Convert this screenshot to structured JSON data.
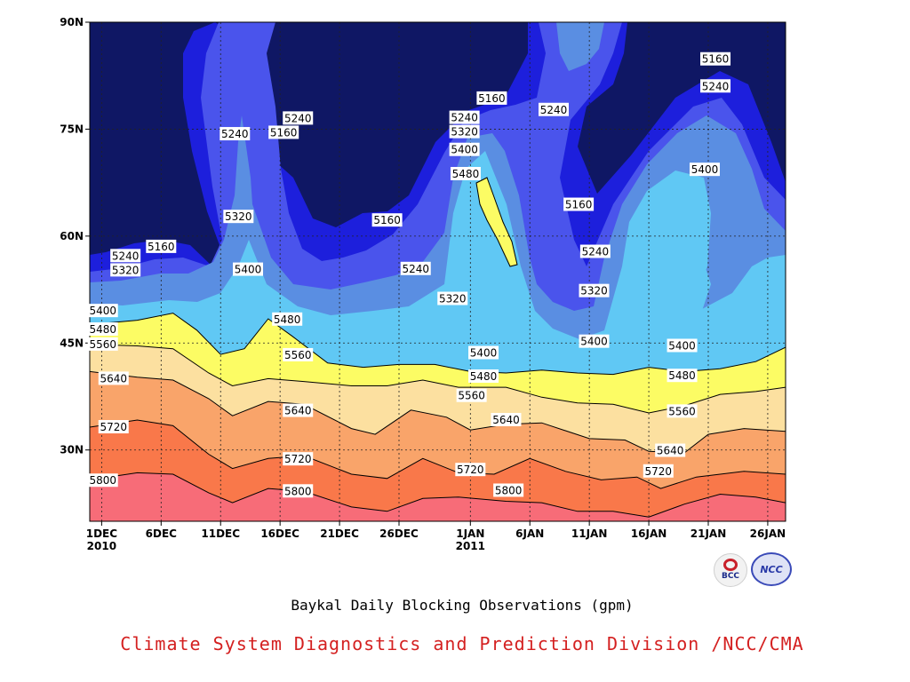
{
  "chart_data": {
    "type": "contour",
    "title": "",
    "subtitle": "Baykal Daily Blocking Observations (gpm)",
    "xlabel": "",
    "ylabel": "",
    "x_ticks": [
      {
        "day": 0,
        "label": "1DEC",
        "sublabel": "2010"
      },
      {
        "day": 5,
        "label": "6DEC",
        "sublabel": ""
      },
      {
        "day": 10,
        "label": "11DEC",
        "sublabel": ""
      },
      {
        "day": 15,
        "label": "16DEC",
        "sublabel": ""
      },
      {
        "day": 20,
        "label": "21DEC",
        "sublabel": ""
      },
      {
        "day": 25,
        "label": "26DEC",
        "sublabel": ""
      },
      {
        "day": 31,
        "label": "1JAN",
        "sublabel": "2011"
      },
      {
        "day": 36,
        "label": "6JAN",
        "sublabel": ""
      },
      {
        "day": 41,
        "label": "11JAN",
        "sublabel": ""
      },
      {
        "day": 46,
        "label": "16JAN",
        "sublabel": ""
      },
      {
        "day": 51,
        "label": "21JAN",
        "sublabel": ""
      },
      {
        "day": 56,
        "label": "26JAN",
        "sublabel": ""
      }
    ],
    "y_ticks": [
      {
        "lat": 30,
        "label": "30N"
      },
      {
        "lat": 45,
        "label": "45N"
      },
      {
        "lat": 60,
        "label": "60N"
      },
      {
        "lat": 75,
        "label": "75N"
      },
      {
        "lat": 90,
        "label": "90N"
      }
    ],
    "xlim_days": [
      -1,
      57.5
    ],
    "ylim": [
      20,
      90
    ],
    "grid": true,
    "levels": [
      5160,
      5240,
      5320,
      5400,
      5480,
      5560,
      5640,
      5720,
      5800
    ],
    "level_colors": {
      "below_5160": "#0f1764",
      "5160": "#1d1fdc",
      "5240": "#4a54ec",
      "5320": "#5a8ee2",
      "5400": "#60c8f4",
      "5480": "#fcfc64",
      "5560": "#fce0a0",
      "5640": "#f9a46a",
      "5720": "#f9784a",
      "5800": "#f76c78"
    },
    "band_boundaries": [
      {
        "level": 5800,
        "points": [
          [
            -1,
            25.8
          ],
          [
            3,
            26.8
          ],
          [
            6,
            26.6
          ],
          [
            9,
            24.0
          ],
          [
            11,
            22.6
          ],
          [
            14,
            24.6
          ],
          [
            17,
            24.2
          ],
          [
            21,
            22.0
          ],
          [
            24,
            21.4
          ],
          [
            27,
            23.2
          ],
          [
            30,
            23.4
          ],
          [
            34,
            22.8
          ],
          [
            37,
            22.6
          ],
          [
            40,
            21.4
          ],
          [
            43,
            21.4
          ],
          [
            46,
            20.6
          ],
          [
            49,
            22.4
          ],
          [
            52,
            23.8
          ],
          [
            55,
            23.4
          ],
          [
            57.5,
            22.6
          ]
        ]
      },
      {
        "level": 5720,
        "points": [
          [
            -1,
            33.2
          ],
          [
            3,
            34.2
          ],
          [
            6,
            33.4
          ],
          [
            9,
            29.4
          ],
          [
            11,
            27.4
          ],
          [
            14,
            28.8
          ],
          [
            17,
            29.2
          ],
          [
            21,
            26.6
          ],
          [
            24,
            26.0
          ],
          [
            27,
            28.8
          ],
          [
            30,
            26.8
          ],
          [
            33,
            26.6
          ],
          [
            36,
            28.8
          ],
          [
            39,
            27.0
          ],
          [
            42,
            25.8
          ],
          [
            45,
            26.2
          ],
          [
            47,
            24.6
          ],
          [
            50,
            26.2
          ],
          [
            54,
            27.0
          ],
          [
            57.5,
            26.6
          ]
        ]
      },
      {
        "level": 5640,
        "points": [
          [
            -1,
            41.0
          ],
          [
            3,
            40.2
          ],
          [
            6,
            39.8
          ],
          [
            9,
            37.2
          ],
          [
            11,
            34.8
          ],
          [
            14,
            36.8
          ],
          [
            17,
            36.4
          ],
          [
            21,
            33.0
          ],
          [
            23,
            32.2
          ],
          [
            26,
            35.6
          ],
          [
            29,
            34.6
          ],
          [
            31,
            32.8
          ],
          [
            34,
            33.6
          ],
          [
            37,
            33.8
          ],
          [
            41,
            31.6
          ],
          [
            44,
            31.4
          ],
          [
            46,
            29.8
          ],
          [
            49,
            29.6
          ],
          [
            51,
            32.2
          ],
          [
            54,
            33.0
          ],
          [
            57.5,
            32.6
          ]
        ]
      },
      {
        "level": 5560,
        "points": [
          [
            -1,
            44.8
          ],
          [
            3,
            44.6
          ],
          [
            6,
            44.2
          ],
          [
            9,
            40.8
          ],
          [
            11,
            39.0
          ],
          [
            14,
            40.0
          ],
          [
            17,
            39.6
          ],
          [
            21,
            39.0
          ],
          [
            24,
            39.0
          ],
          [
            27,
            39.8
          ],
          [
            30,
            38.8
          ],
          [
            34,
            38.8
          ],
          [
            37,
            37.4
          ],
          [
            40,
            36.6
          ],
          [
            43,
            36.4
          ],
          [
            46,
            35.2
          ],
          [
            49,
            36.2
          ],
          [
            52,
            37.8
          ],
          [
            55,
            38.2
          ],
          [
            57.5,
            38.8
          ]
        ]
      },
      {
        "level": 5480,
        "points": [
          [
            -1,
            47.6
          ],
          [
            3,
            48.2
          ],
          [
            6,
            49.2
          ],
          [
            8,
            46.8
          ],
          [
            10,
            43.4
          ],
          [
            12,
            44.2
          ],
          [
            14,
            48.4
          ],
          [
            16,
            46.0
          ],
          [
            19,
            42.2
          ],
          [
            22,
            41.6
          ],
          [
            25,
            42.0
          ],
          [
            28,
            42.0
          ],
          [
            31,
            41.0
          ],
          [
            34,
            40.8
          ],
          [
            37,
            41.2
          ],
          [
            40,
            40.8
          ],
          [
            43,
            40.6
          ],
          [
            46,
            41.6
          ],
          [
            49,
            41.0
          ],
          [
            52,
            41.4
          ],
          [
            55,
            42.4
          ],
          [
            57.5,
            44.4
          ]
        ]
      }
    ],
    "labels": [
      {
        "text": "5160",
        "day": 5.0,
        "lat": 58.5
      },
      {
        "text": "5240",
        "day": 11.2,
        "lat": 74.3
      },
      {
        "text": "5160",
        "day": 15.3,
        "lat": 74.5
      },
      {
        "text": "5240",
        "day": 16.5,
        "lat": 76.5
      },
      {
        "text": "5320",
        "day": 11.5,
        "lat": 62.7
      },
      {
        "text": "5400",
        "day": 12.3,
        "lat": 55.3
      },
      {
        "text": "5480",
        "day": 15.6,
        "lat": 48.3
      },
      {
        "text": "5560",
        "day": 16.5,
        "lat": 43.3
      },
      {
        "text": "5640",
        "day": 16.5,
        "lat": 35.5
      },
      {
        "text": "5720",
        "day": 16.5,
        "lat": 28.7
      },
      {
        "text": "5800",
        "day": 16.5,
        "lat": 24.2
      },
      {
        "text": "5240",
        "day": 2.0,
        "lat": 57.2
      },
      {
        "text": "5320",
        "day": 2.0,
        "lat": 55.2
      },
      {
        "text": "5400",
        "day": 0.1,
        "lat": 49.5
      },
      {
        "text": "5480",
        "day": 0.1,
        "lat": 46.9
      },
      {
        "text": "5560",
        "day": 0.1,
        "lat": 44.8
      },
      {
        "text": "5640",
        "day": 1.0,
        "lat": 40.0
      },
      {
        "text": "5720",
        "day": 1.0,
        "lat": 33.2
      },
      {
        "text": "5800",
        "day": 0.1,
        "lat": 25.7
      },
      {
        "text": "5160",
        "day": 24.0,
        "lat": 62.2
      },
      {
        "text": "5240",
        "day": 26.4,
        "lat": 55.4
      },
      {
        "text": "5320",
        "day": 29.5,
        "lat": 51.2
      },
      {
        "text": "5160",
        "day": 32.8,
        "lat": 79.3
      },
      {
        "text": "5240",
        "day": 30.5,
        "lat": 76.6
      },
      {
        "text": "5320",
        "day": 30.5,
        "lat": 74.6
      },
      {
        "text": "5400",
        "day": 30.5,
        "lat": 72.1
      },
      {
        "text": "5480",
        "day": 30.6,
        "lat": 68.7
      },
      {
        "text": "5400",
        "day": 32.1,
        "lat": 43.6
      },
      {
        "text": "5480",
        "day": 32.1,
        "lat": 40.3
      },
      {
        "text": "5560",
        "day": 31.1,
        "lat": 37.6
      },
      {
        "text": "5640",
        "day": 34.0,
        "lat": 34.2
      },
      {
        "text": "5720",
        "day": 31.0,
        "lat": 27.2
      },
      {
        "text": "5800",
        "day": 34.2,
        "lat": 24.3
      },
      {
        "text": "5240",
        "day": 38.0,
        "lat": 77.7
      },
      {
        "text": "5160",
        "day": 40.1,
        "lat": 64.4
      },
      {
        "text": "5240",
        "day": 41.5,
        "lat": 57.8
      },
      {
        "text": "5320",
        "day": 41.4,
        "lat": 52.3
      },
      {
        "text": "5400",
        "day": 41.4,
        "lat": 45.2
      },
      {
        "text": "5160",
        "day": 51.6,
        "lat": 84.8
      },
      {
        "text": "5240",
        "day": 51.6,
        "lat": 81.0
      },
      {
        "text": "5400",
        "day": 50.7,
        "lat": 69.3
      },
      {
        "text": "5400",
        "day": 48.8,
        "lat": 44.6
      },
      {
        "text": "5480",
        "day": 48.8,
        "lat": 40.4
      },
      {
        "text": "5560",
        "day": 48.8,
        "lat": 35.4
      },
      {
        "text": "5640",
        "day": 47.8,
        "lat": 29.9
      },
      {
        "text": "5720",
        "day": 46.8,
        "lat": 27.0
      }
    ]
  },
  "footer": {
    "subtitle": "Baykal Daily Blocking Observations (gpm)",
    "credit": "Climate System Diagnostics and Prediction Division /NCC/CMA",
    "logo_left_text": "BCC",
    "logo_right_text": "NCC"
  }
}
